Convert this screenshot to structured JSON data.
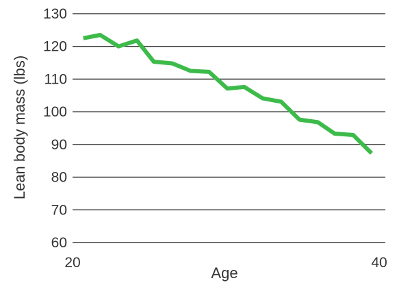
{
  "chart_data": {
    "type": "line",
    "title": "",
    "xlabel": "Age",
    "ylabel": "Lean body mass (lbs)",
    "xlim": [
      20,
      40
    ],
    "ylim": [
      60,
      130
    ],
    "x_ticks": [
      "20",
      "40"
    ],
    "y_ticks": [
      "60",
      "70",
      "80",
      "90",
      "100",
      "110",
      "120",
      "130"
    ],
    "grid": "horizontal",
    "series": [
      {
        "color": "#3dbb4a",
        "x": [
          20.7,
          21.8,
          23.0,
          24.2,
          25.3,
          26.5,
          27.7,
          28.9,
          30.1,
          31.2,
          32.4,
          33.6,
          34.8,
          36.0,
          37.1,
          38.3,
          39.5
        ],
        "y": [
          122.5,
          123.5,
          120.0,
          121.8,
          115.3,
          114.8,
          112.5,
          112.2,
          107.1,
          107.6,
          104.1,
          103.1,
          97.6,
          96.8,
          93.3,
          92.9,
          87.3
        ]
      }
    ]
  }
}
